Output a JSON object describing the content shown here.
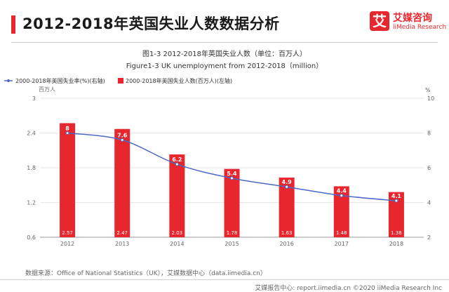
{
  "header": {
    "title": "2012-2018年英国失业人数数据分析",
    "logo_glyph": "艾",
    "logo_cn": "艾媒咨询",
    "logo_en": "iiMedia Research"
  },
  "source": "数据来源：Office of National Statistics（UK），艾媒数据中心（data.iimedia.cn）",
  "footer": "艾媒报告中心: report.iimedia.cn ©2020  iiMedia Research  Inc",
  "colors": {
    "bar": "#e8262d",
    "line": "#4a68c8",
    "accent": "#e8262d"
  },
  "chart_data": {
    "type": "bar",
    "title": "图1-3 2012-2018年英国失业人数（单位：百万人）",
    "subtitle": "Figure1-3 UK unemployment from 2012-2018（million）",
    "categories": [
      "2012",
      "2013",
      "2014",
      "2015",
      "2016",
      "2017",
      "2018"
    ],
    "ylabel_left": "百万人",
    "ylabel_right": "%",
    "ylim_left": [
      0.6,
      3
    ],
    "yticks_left": [
      "0.6",
      "1.2",
      "1.8",
      "2.4",
      "3"
    ],
    "ylim_right": [
      2,
      10
    ],
    "yticks_right": [
      "2",
      "4",
      "6",
      "8",
      "10"
    ],
    "legend_position": "top-left",
    "series": [
      {
        "name": "2000-2018年英国失业人数(百万人)(左轴)",
        "type": "bar",
        "axis": "left",
        "values": [
          2.57,
          2.47,
          2.03,
          1.78,
          1.63,
          1.48,
          1.38
        ],
        "labels": [
          "2.57",
          "2.47",
          "2.03",
          "1.78",
          "1.63",
          "1.48",
          "1.38"
        ]
      },
      {
        "name": "2000-2018年英国失业率(%)(右轴)",
        "type": "line",
        "axis": "right",
        "values": [
          8,
          7.6,
          6.2,
          5.4,
          4.9,
          4.4,
          4.1
        ],
        "labels": [
          "8",
          "7.6",
          "6.2",
          "5.4",
          "4.9",
          "4.4",
          "4.1"
        ]
      }
    ]
  }
}
